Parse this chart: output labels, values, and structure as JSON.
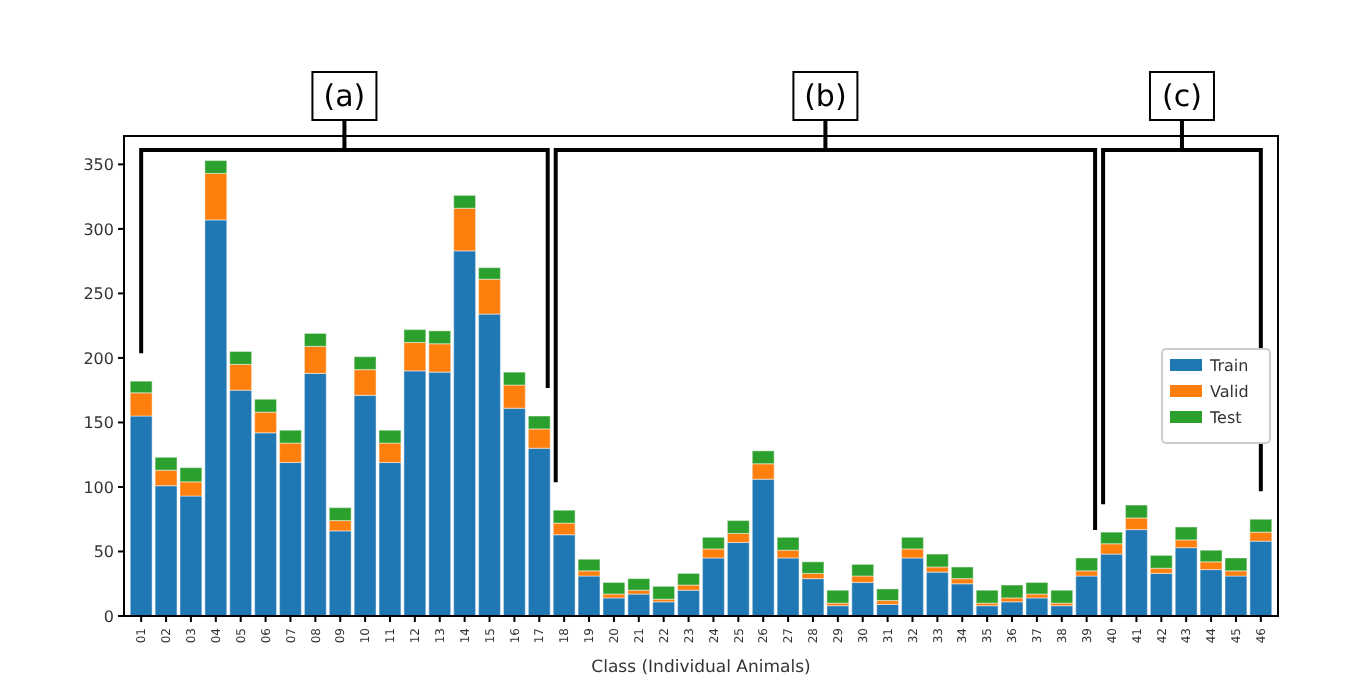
{
  "chart_data": {
    "type": "bar",
    "stacked": true,
    "xlabel": "Class (Individual Animals)",
    "categories": [
      "01",
      "02",
      "03",
      "04",
      "05",
      "06",
      "07",
      "08",
      "09",
      "10",
      "11",
      "12",
      "13",
      "14",
      "15",
      "16",
      "17",
      "18",
      "19",
      "20",
      "21",
      "22",
      "23",
      "24",
      "25",
      "26",
      "27",
      "28",
      "29",
      "30",
      "31",
      "32",
      "33",
      "34",
      "35",
      "36",
      "37",
      "38",
      "39",
      "40",
      "41",
      "42",
      "43",
      "44",
      "45",
      "46"
    ],
    "series": [
      {
        "name": "Train",
        "color": "#1f77b4",
        "values": [
          155,
          101,
          93,
          307,
          175,
          142,
          119,
          188,
          66,
          171,
          119,
          190,
          189,
          283,
          234,
          161,
          130,
          63,
          31,
          14,
          17,
          11,
          20,
          45,
          57,
          106,
          45,
          29,
          8,
          26,
          9,
          45,
          34,
          25,
          8,
          11,
          14,
          8,
          31,
          48,
          67,
          33,
          53,
          36,
          31,
          58
        ]
      },
      {
        "name": "Valid",
        "color": "#ff7f0e",
        "values": [
          18,
          12,
          11,
          36,
          20,
          16,
          15,
          21,
          8,
          20,
          15,
          22,
          22,
          33,
          27,
          18,
          15,
          9,
          4,
          3,
          3,
          2,
          4,
          7,
          7,
          12,
          6,
          4,
          2,
          5,
          3,
          7,
          4,
          4,
          2,
          3,
          3,
          2,
          4,
          8,
          9,
          4,
          6,
          6,
          4,
          7
        ]
      },
      {
        "name": "Test",
        "color": "#2ca02c",
        "values": [
          9,
          10,
          11,
          10,
          10,
          10,
          10,
          10,
          10,
          10,
          10,
          10,
          10,
          10,
          9,
          10,
          10,
          10,
          9,
          9,
          9,
          10,
          9,
          9,
          10,
          10,
          10,
          9,
          10,
          9,
          9,
          9,
          10,
          9,
          10,
          10,
          9,
          10,
          10,
          9,
          10,
          10,
          10,
          9,
          10,
          10
        ]
      }
    ],
    "ylim": [
      0,
      372
    ],
    "yticks": [
      0,
      50,
      100,
      150,
      200,
      250,
      300,
      350
    ],
    "annotations": [
      "(a)",
      "(b)",
      "(c)"
    ],
    "legend": "right"
  }
}
